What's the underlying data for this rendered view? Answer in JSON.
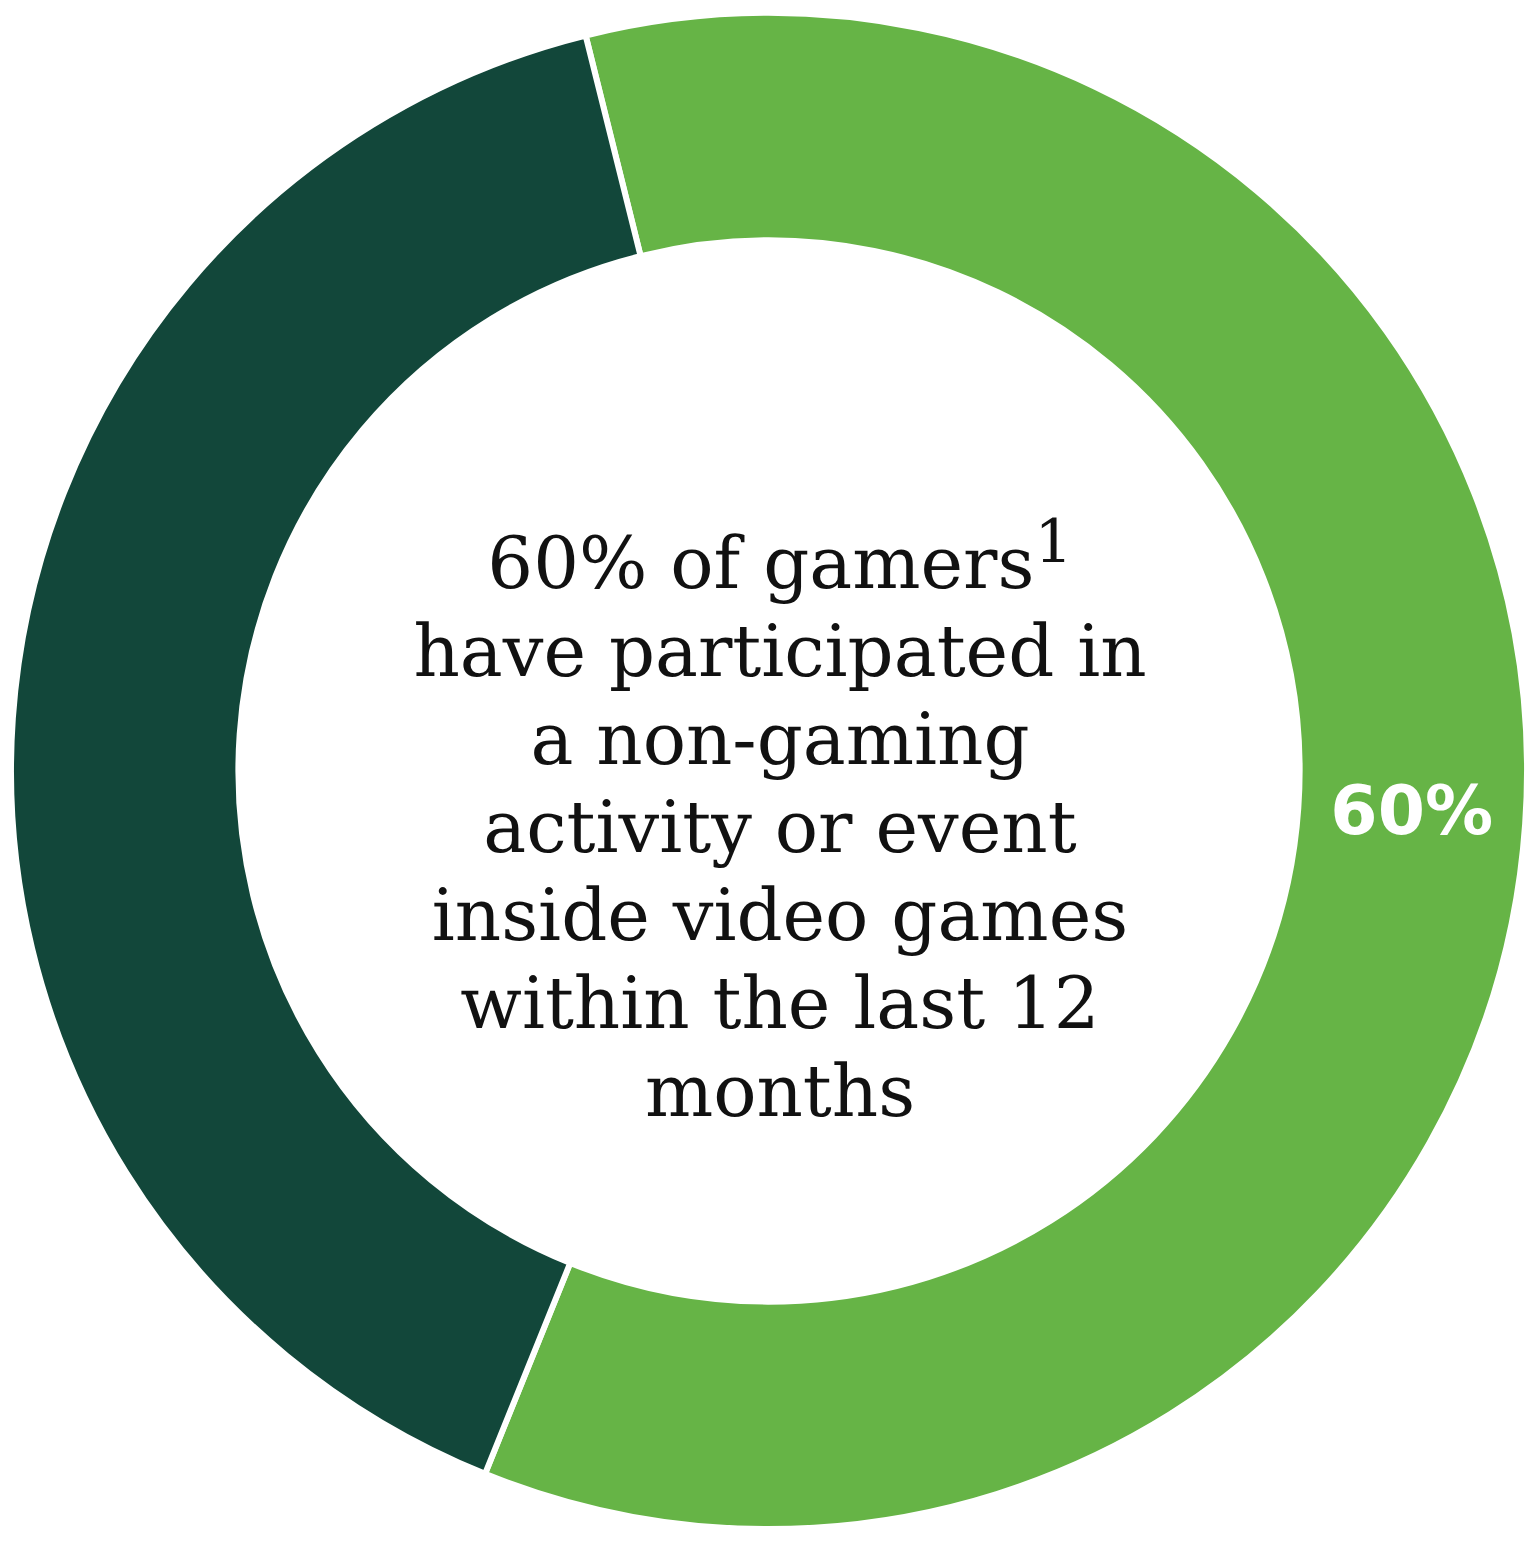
{
  "chart_data": {
    "type": "donut",
    "title": "60% of gamers$^{1}$ have participated in a non-gaming activity or event inside video games within the last 12 months",
    "categories": [
      null,
      null
    ],
    "values": [
      60,
      40
    ],
    "colors": [
      "#66b446",
      "#12473a"
    ],
    "value_labels": [
      "60%",
      null
    ],
    "legend": false
  }
}
